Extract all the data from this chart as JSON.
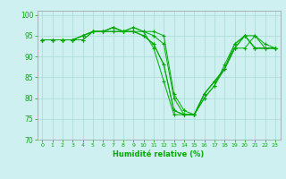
{
  "xlabel": "Humidité relative (%)",
  "background_color": "#cff0f0",
  "grid_color": "#a8d8d8",
  "line_color": "#00aa00",
  "marker": "+",
  "xlim": [
    -0.5,
    23.5
  ],
  "ylim": [
    70,
    101
  ],
  "yticks": [
    70,
    75,
    80,
    85,
    90,
    95,
    100
  ],
  "xticks": [
    0,
    1,
    2,
    3,
    4,
    5,
    6,
    7,
    8,
    9,
    10,
    11,
    12,
    13,
    14,
    15,
    16,
    17,
    18,
    19,
    20,
    21,
    22,
    23
  ],
  "series": [
    [
      94,
      94,
      94,
      94,
      94,
      96,
      96,
      97,
      96,
      96,
      96,
      92,
      84,
      76,
      76,
      76,
      81,
      84,
      87,
      92,
      92,
      95,
      92,
      92
    ],
    [
      94,
      94,
      94,
      94,
      94,
      96,
      96,
      97,
      96,
      96,
      95,
      93,
      88,
      77,
      76,
      76,
      80,
      83,
      87,
      92,
      95,
      92,
      92,
      92
    ],
    [
      94,
      94,
      94,
      94,
      95,
      96,
      96,
      97,
      96,
      96,
      95,
      93,
      88,
      77,
      76,
      76,
      80,
      83,
      88,
      93,
      95,
      92,
      92,
      92
    ],
    [
      94,
      94,
      94,
      94,
      95,
      96,
      96,
      96,
      96,
      97,
      96,
      95,
      93,
      80,
      76,
      76,
      81,
      84,
      87,
      92,
      95,
      92,
      92,
      92
    ],
    [
      94,
      94,
      94,
      94,
      95,
      96,
      96,
      96,
      96,
      97,
      96,
      96,
      95,
      81,
      77,
      76,
      81,
      84,
      87,
      93,
      95,
      95,
      93,
      92
    ]
  ]
}
